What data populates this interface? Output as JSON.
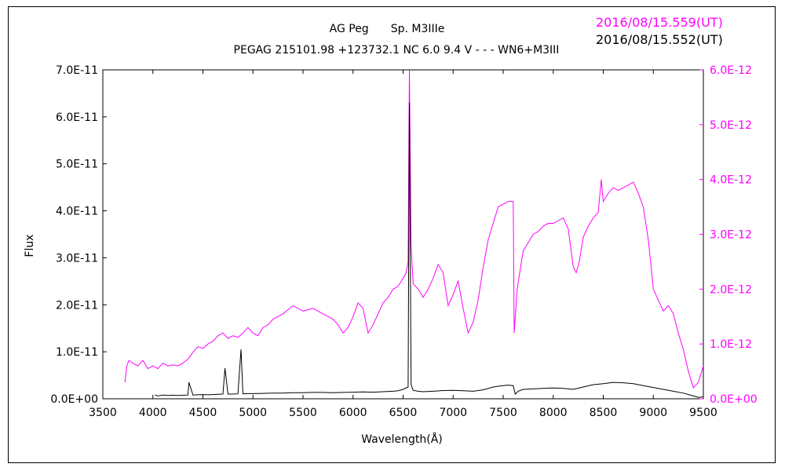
{
  "chart_data": {
    "type": "line",
    "title": "AG Peg　　Sp. M3IIIe",
    "subtitle": "PEGAG 215101.98 +123732.1 NC 6.0 9.4 V - - - WN6+M3III",
    "xlabel": "Wavelength(Å)",
    "ylabel": "Flux",
    "xlim": [
      3500,
      9500
    ],
    "ylim_left": [
      0,
      7e-11
    ],
    "ylim_right": [
      0,
      6e-12
    ],
    "x_ticks": [
      "3500",
      "4000",
      "4500",
      "5000",
      "5500",
      "6000",
      "6500",
      "7000",
      "7500",
      "8000",
      "8500",
      "9000",
      "9500"
    ],
    "y_ticks_left": [
      "0.0E+00",
      "1.0E-11",
      "2.0E-11",
      "3.0E-11",
      "4.0E-11",
      "5.0E-11",
      "6.0E-11",
      "7.0E-11"
    ],
    "y_ticks_right": [
      "0.0E+00",
      "1.0E-12",
      "2.0E-12",
      "3.0E-12",
      "4.0E-12",
      "5.0E-12",
      "6.0E-12"
    ],
    "grid": false,
    "legend_position": "top-right",
    "series": [
      {
        "name": "2016/08/15.559(UT)",
        "axis": "right",
        "color": "#ff00ff",
        "x": [
          3720,
          3740,
          3760,
          3800,
          3850,
          3900,
          3950,
          4000,
          4050,
          4100,
          4150,
          4200,
          4250,
          4300,
          4350,
          4400,
          4450,
          4500,
          4550,
          4600,
          4650,
          4700,
          4750,
          4800,
          4850,
          4900,
          4950,
          5000,
          5050,
          5100,
          5150,
          5200,
          5300,
          5400,
          5500,
          5600,
          5700,
          5800,
          5850,
          5900,
          5950,
          6000,
          6050,
          6100,
          6150,
          6200,
          6250,
          6300,
          6350,
          6400,
          6450,
          6500,
          6530,
          6550,
          6563,
          6580,
          6600,
          6650,
          6700,
          6750,
          6800,
          6850,
          6900,
          6950,
          7000,
          7050,
          7100,
          7150,
          7200,
          7250,
          7300,
          7350,
          7400,
          7450,
          7500,
          7550,
          7600,
          7610,
          7640,
          7700,
          7750,
          7800,
          7850,
          7900,
          7950,
          8000,
          8050,
          8100,
          8150,
          8200,
          8230,
          8260,
          8300,
          8350,
          8400,
          8450,
          8480,
          8500,
          8550,
          8600,
          8650,
          8700,
          8750,
          8800,
          8850,
          8900,
          8950,
          9000,
          9050,
          9100,
          9150,
          9200,
          9250,
          9300,
          9350,
          9400,
          9450,
          9500
        ],
        "values": [
          3e-13,
          6e-13,
          7e-13,
          6.5e-13,
          6e-13,
          7e-13,
          5.5e-13,
          6e-13,
          5.5e-13,
          6.5e-13,
          6e-13,
          6.2e-13,
          6e-13,
          6.5e-13,
          7.2e-13,
          8.5e-13,
          9.5e-13,
          9.2e-13,
          1e-12,
          1.05e-12,
          1.15e-12,
          1.2e-12,
          1.1e-12,
          1.15e-12,
          1.12e-12,
          1.2e-12,
          1.3e-12,
          1.2e-12,
          1.15e-12,
          1.3e-12,
          1.35e-12,
          1.45e-12,
          1.55e-12,
          1.7e-12,
          1.6e-12,
          1.65e-12,
          1.55e-12,
          1.45e-12,
          1.35e-12,
          1.2e-12,
          1.3e-12,
          1.5e-12,
          1.75e-12,
          1.65e-12,
          1.2e-12,
          1.35e-12,
          1.55e-12,
          1.75e-12,
          1.85e-12,
          2e-12,
          2.05e-12,
          2.2e-12,
          2.3e-12,
          2.5e-12,
          6e-12,
          2.8e-12,
          2.1e-12,
          2e-12,
          1.85e-12,
          2e-12,
          2.2e-12,
          2.45e-12,
          2.3e-12,
          1.7e-12,
          1.9e-12,
          2.15e-12,
          1.65e-12,
          1.2e-12,
          1.4e-12,
          1.8e-12,
          2.4e-12,
          2.9e-12,
          3.2e-12,
          3.5e-12,
          3.55e-12,
          3.6e-12,
          3.6e-12,
          1.2e-12,
          2e-12,
          2.7e-12,
          2.85e-12,
          3e-12,
          3.05e-12,
          3.15e-12,
          3.2e-12,
          3.2e-12,
          3.25e-12,
          3.3e-12,
          3.1e-12,
          2.4e-12,
          2.3e-12,
          2.5e-12,
          2.95e-12,
          3.15e-12,
          3.3e-12,
          3.4e-12,
          4e-12,
          3.6e-12,
          3.75e-12,
          3.85e-12,
          3.8e-12,
          3.85e-12,
          3.9e-12,
          3.95e-12,
          3.75e-12,
          3.5e-12,
          2.9e-12,
          2e-12,
          1.8e-12,
          1.6e-12,
          1.7e-12,
          1.55e-12,
          1.2e-12,
          9e-13,
          5e-13,
          2e-13,
          3e-13,
          6e-13
        ]
      },
      {
        "name": "2016/08/15.552(UT)",
        "axis": "left",
        "color": "#000000",
        "x": [
          4020,
          4050,
          4100,
          4150,
          4200,
          4250,
          4300,
          4350,
          4360,
          4400,
          4450,
          4500,
          4550,
          4600,
          4650,
          4700,
          4720,
          4750,
          4800,
          4850,
          4880,
          4900,
          4950,
          5000,
          5100,
          5200,
          5300,
          5400,
          5500,
          5600,
          5700,
          5800,
          5900,
          6000,
          6100,
          6200,
          6300,
          6400,
          6450,
          6500,
          6550,
          6563,
          6580,
          6600,
          6650,
          6700,
          6800,
          6900,
          7000,
          7100,
          7200,
          7300,
          7400,
          7500,
          7550,
          7600,
          7620,
          7650,
          7700,
          7800,
          7900,
          8000,
          8100,
          8200,
          8300,
          8400,
          8500,
          8600,
          8700,
          8800,
          8900,
          9000,
          9100,
          9200,
          9300,
          9400,
          9450,
          9500
        ],
        "values": [
          8e-13,
          6e-13,
          8e-13,
          7e-13,
          7.5e-13,
          7e-13,
          7.5e-13,
          8e-13,
          3.5e-12,
          8e-13,
          8.5e-13,
          9e-13,
          8.5e-13,
          9e-13,
          9.5e-13,
          1e-12,
          6.5e-12,
          1e-12,
          1e-12,
          1.05e-12,
          1.05e-11,
          1.05e-12,
          1.1e-12,
          1.1e-12,
          1.15e-12,
          1.2e-12,
          1.2e-12,
          1.3e-12,
          1.3e-12,
          1.35e-12,
          1.35e-12,
          1.3e-12,
          1.35e-12,
          1.4e-12,
          1.45e-12,
          1.4e-12,
          1.5e-12,
          1.6e-12,
          1.7e-12,
          2e-12,
          2.5e-12,
          6.3e-11,
          3e-12,
          1.8e-12,
          1.6e-12,
          1.5e-12,
          1.6e-12,
          1.75e-12,
          1.8e-12,
          1.7e-12,
          1.6e-12,
          1.9e-12,
          2.5e-12,
          2.8e-12,
          2.9e-12,
          2.8e-12,
          1e-12,
          1.6e-12,
          2e-12,
          2.1e-12,
          2.2e-12,
          2.3e-12,
          2.2e-12,
          2e-12,
          2.5e-12,
          3e-12,
          3.2e-12,
          3.5e-12,
          3.4e-12,
          3.2e-12,
          2.8e-12,
          2.4e-12,
          2e-12,
          1.6e-12,
          1.2e-12,
          6e-13,
          3e-13,
          4e-13
        ]
      }
    ]
  }
}
